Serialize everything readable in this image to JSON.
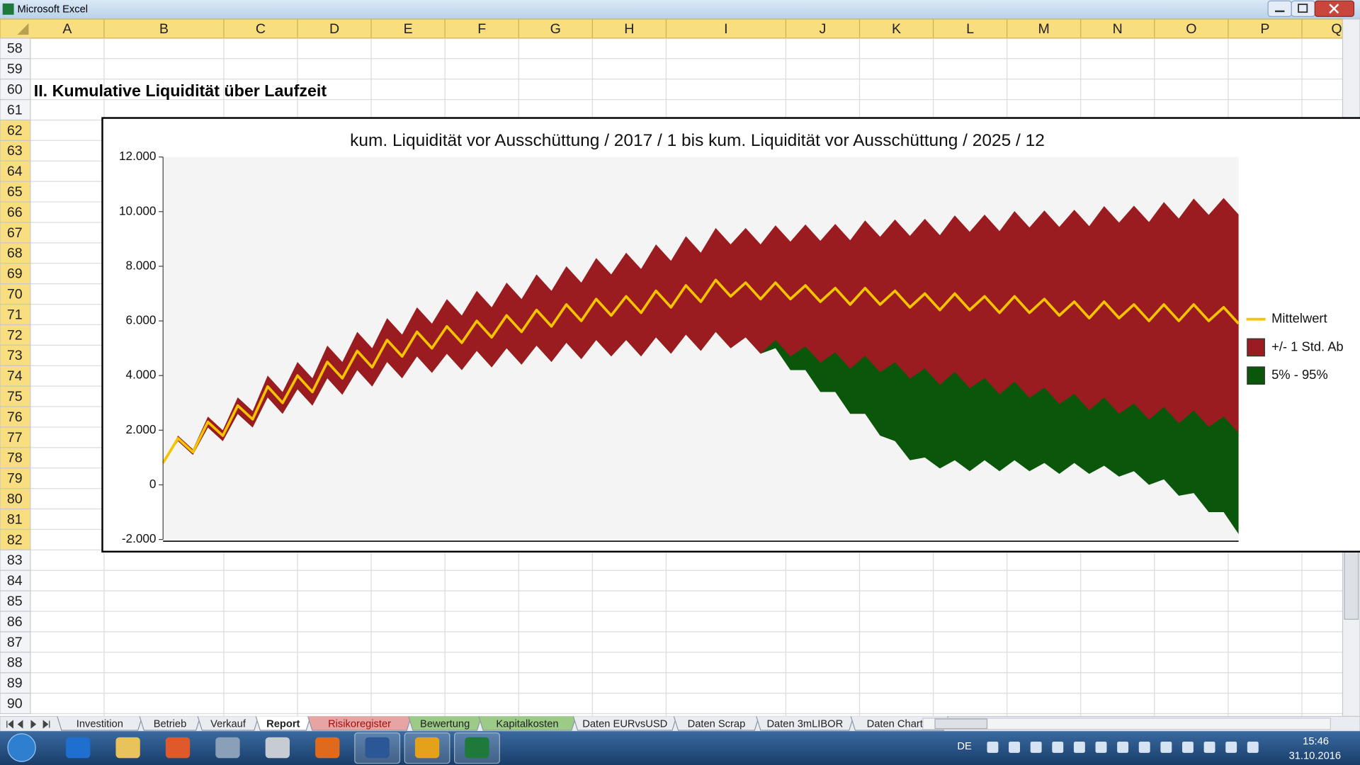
{
  "window": {
    "title": "Microsoft Excel"
  },
  "columns": [
    "A",
    "B",
    "C",
    "D",
    "E",
    "F",
    "G",
    "H",
    "I",
    "J",
    "K",
    "L",
    "M",
    "N",
    "O",
    "P",
    "Q"
  ],
  "rows": [
    58,
    59,
    60,
    61,
    62,
    63,
    64,
    65,
    66,
    67,
    68,
    69,
    70,
    71,
    72,
    73,
    74,
    75,
    76,
    77,
    78,
    79,
    80,
    81,
    82,
    83,
    84,
    85,
    86,
    87,
    88,
    89,
    90
  ],
  "heading": "II. Kumulative Liquidität über Laufzeit",
  "sheet_tabs": [
    {
      "label": "Investition"
    },
    {
      "label": "Betrieb"
    },
    {
      "label": "Verkauf"
    },
    {
      "label": "Report",
      "active": true
    },
    {
      "label": "Risikoregister",
      "color": "#e8a3a3"
    },
    {
      "label": "Bewertung",
      "color": "#9bcb86"
    },
    {
      "label": "Kapitalkosten",
      "color": "#9bcb86"
    },
    {
      "label": "Daten EURvsUSD"
    },
    {
      "label": "Daten Scrap"
    },
    {
      "label": "Daten 3mLIBOR"
    },
    {
      "label": "Daten Charter"
    }
  ],
  "taskbar": {
    "language": "DE",
    "time": "15:46",
    "date": "31.10.2016"
  },
  "chart_data": {
    "type": "band",
    "title": "kum. Liquidität vor Ausschüttung / 2017 / 1 bis kum. Liquidität vor Ausschüttung / 2025 / 12",
    "ylim": [
      -2000,
      12000
    ],
    "yticks": [
      {
        "value": -2000,
        "label": "-2.000"
      },
      0,
      {
        "value": 2000,
        "label": "2.000"
      },
      {
        "value": 4000,
        "label": "4.000"
      },
      {
        "value": 6000,
        "label": "6.000"
      },
      {
        "value": 8000,
        "label": "8.000"
      },
      {
        "value": 10000,
        "label": "10.000"
      },
      {
        "value": 12000,
        "label": "12.000"
      }
    ],
    "series": [
      {
        "name": "Mittelwert",
        "color": "#f5c400",
        "kind": "line",
        "values": [
          800,
          1700,
          1200,
          2300,
          1800,
          2900,
          2400,
          3600,
          3000,
          4000,
          3400,
          4500,
          3900,
          4900,
          4300,
          5300,
          4700,
          5600,
          5000,
          5800,
          5200,
          6000,
          5400,
          6200,
          5600,
          6400,
          5800,
          6600,
          6000,
          6800,
          6200,
          6900,
          6300,
          7100,
          6500,
          7300,
          6700,
          7500,
          6900,
          7400,
          6800,
          7400,
          6800,
          7300,
          6700,
          7200,
          6600,
          7200,
          6600,
          7100,
          6500,
          7000,
          6400,
          7000,
          6400,
          6900,
          6300,
          6900,
          6300,
          6800,
          6200,
          6700,
          6100,
          6700,
          6100,
          6600,
          6000,
          6600,
          6000,
          6600,
          6000,
          6500,
          5900
        ]
      },
      {
        "name": "+/- 1 Std. Ab",
        "color": "#9a1c20",
        "kind": "std",
        "values": [
          0,
          100,
          100,
          200,
          200,
          300,
          300,
          400,
          400,
          500,
          500,
          600,
          600,
          700,
          700,
          800,
          800,
          900,
          900,
          1000,
          1000,
          1100,
          1100,
          1200,
          1200,
          1300,
          1300,
          1400,
          1400,
          1500,
          1500,
          1600,
          1600,
          1700,
          1700,
          1800,
          1800,
          1900,
          1900,
          2000,
          2000,
          2100,
          2100,
          2230,
          2230,
          2350,
          2350,
          2480,
          2480,
          2610,
          2610,
          2740,
          2740,
          2860,
          2860,
          2990,
          2990,
          3120,
          3120,
          3240,
          3240,
          3370,
          3370,
          3500,
          3500,
          3620,
          3620,
          3750,
          3750,
          3880,
          3880,
          4000,
          4000
        ]
      },
      {
        "name": "5% - 95%",
        "color": "#0a560a",
        "kind": "lower",
        "values": [
          800,
          1600,
          1100,
          2100,
          1600,
          2600,
          2100,
          3200,
          2600,
          3500,
          2900,
          3900,
          3300,
          4200,
          3600,
          4500,
          3900,
          4700,
          4100,
          4800,
          4200,
          4900,
          4300,
          5000,
          4400,
          5100,
          4500,
          5200,
          4600,
          5300,
          4700,
          5300,
          4700,
          5400,
          4800,
          5500,
          4900,
          5600,
          5000,
          5400,
          4800,
          5000,
          4200,
          4200,
          3400,
          3400,
          2600,
          2600,
          1800,
          1600,
          900,
          1000,
          600,
          900,
          500,
          900,
          500,
          900,
          500,
          800,
          400,
          800,
          400,
          700,
          300,
          500,
          0,
          200,
          -400,
          -300,
          -1000,
          -1000,
          -1800
        ]
      }
    ],
    "grid": false,
    "legend": "right"
  }
}
